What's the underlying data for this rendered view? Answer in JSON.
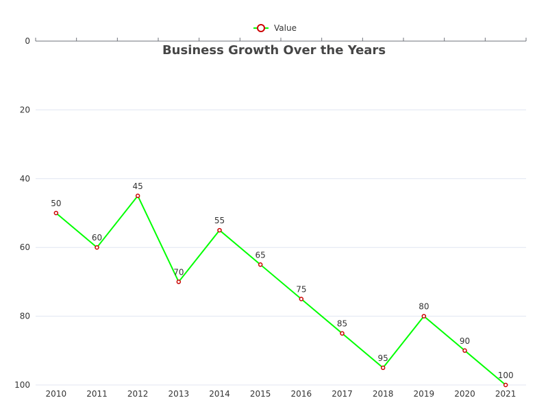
{
  "chart_data": {
    "type": "line",
    "title": "Business Growth Over the Years",
    "xlabel": "",
    "ylabel": "",
    "categories": [
      "2010",
      "2011",
      "2012",
      "2013",
      "2014",
      "2015",
      "2016",
      "2017",
      "2018",
      "2019",
      "2020",
      "2021"
    ],
    "series": [
      {
        "name": "Value",
        "values": [
          50,
          60,
          45,
          70,
          55,
          65,
          75,
          85,
          95,
          80,
          90,
          100
        ],
        "color": "#00ff00",
        "marker_color": "#cc0000"
      }
    ],
    "ylim": [
      0,
      100
    ],
    "y_ticks": [
      0,
      20,
      40,
      60,
      80,
      100
    ],
    "y_axis_inverted": true,
    "x_axis_position": "top",
    "x_labels_position": "bottom",
    "grid": true,
    "data_labels": true,
    "legend_position": "top-center"
  }
}
